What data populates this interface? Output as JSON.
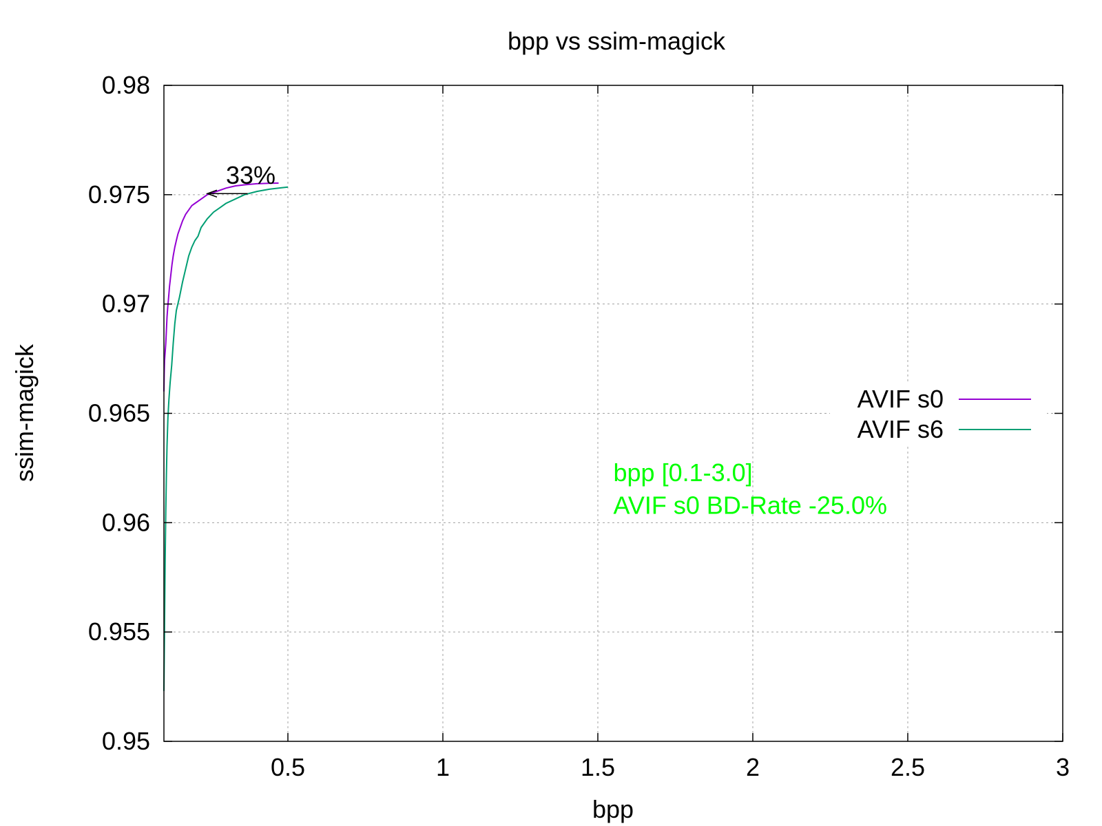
{
  "chart_data": {
    "type": "line",
    "title": "bpp vs ssim-magick",
    "xlabel": "bpp",
    "ylabel": "ssim-magick",
    "xlim": [
      0.1,
      3
    ],
    "ylim": [
      0.95,
      0.98
    ],
    "grid": true,
    "legend_position": "right",
    "x_ticks": [
      {
        "value": 0.5,
        "label": "0.5"
      },
      {
        "value": 1,
        "label": "1"
      },
      {
        "value": 1.5,
        "label": "1.5"
      },
      {
        "value": 2,
        "label": "2"
      },
      {
        "value": 2.5,
        "label": "2.5"
      },
      {
        "value": 3,
        "label": "3"
      }
    ],
    "y_ticks": [
      {
        "value": 0.95,
        "label": "0.95"
      },
      {
        "value": 0.955,
        "label": "0.955"
      },
      {
        "value": 0.96,
        "label": "0.96"
      },
      {
        "value": 0.965,
        "label": "0.965"
      },
      {
        "value": 0.97,
        "label": "0.97"
      },
      {
        "value": 0.975,
        "label": "0.975"
      },
      {
        "value": 0.98,
        "label": "0.98"
      }
    ],
    "series": [
      {
        "name": "AVIF s0",
        "color": "#9400d3",
        "points": [
          [
            0.1,
            0.966
          ],
          [
            0.101,
            0.9668
          ],
          [
            0.102,
            0.9674
          ],
          [
            0.104,
            0.9678
          ],
          [
            0.106,
            0.9682
          ],
          [
            0.108,
            0.9688
          ],
          [
            0.11,
            0.9694
          ],
          [
            0.112,
            0.9698
          ],
          [
            0.115,
            0.9703
          ],
          [
            0.118,
            0.9708
          ],
          [
            0.122,
            0.9713
          ],
          [
            0.126,
            0.9718
          ],
          [
            0.13,
            0.9722
          ],
          [
            0.135,
            0.9726
          ],
          [
            0.14,
            0.9729
          ],
          [
            0.145,
            0.9732
          ],
          [
            0.15,
            0.9734
          ],
          [
            0.16,
            0.9738
          ],
          [
            0.17,
            0.9741
          ],
          [
            0.18,
            0.9743
          ],
          [
            0.19,
            0.9745
          ],
          [
            0.2,
            0.9746
          ],
          [
            0.22,
            0.9748
          ],
          [
            0.24,
            0.975
          ],
          [
            0.26,
            0.9751
          ],
          [
            0.28,
            0.9752
          ],
          [
            0.3,
            0.9753
          ],
          [
            0.33,
            0.9754
          ],
          [
            0.36,
            0.97545
          ],
          [
            0.4,
            0.9755
          ],
          [
            0.44,
            0.97552
          ],
          [
            0.47,
            0.97553
          ]
        ]
      },
      {
        "name": "AVIF s6",
        "color": "#009e73",
        "points": [
          [
            0.1,
            0.9523
          ],
          [
            0.102,
            0.9553
          ],
          [
            0.104,
            0.9583
          ],
          [
            0.106,
            0.9605
          ],
          [
            0.108,
            0.9622
          ],
          [
            0.11,
            0.9635
          ],
          [
            0.113,
            0.9648
          ],
          [
            0.116,
            0.9656
          ],
          [
            0.12,
            0.9664
          ],
          [
            0.125,
            0.9672
          ],
          [
            0.13,
            0.9682
          ],
          [
            0.135,
            0.9691
          ],
          [
            0.14,
            0.9697
          ],
          [
            0.15,
            0.9703
          ],
          [
            0.16,
            0.971
          ],
          [
            0.17,
            0.9716
          ],
          [
            0.18,
            0.9722
          ],
          [
            0.19,
            0.9726
          ],
          [
            0.2,
            0.9729
          ],
          [
            0.21,
            0.9731
          ],
          [
            0.22,
            0.9735
          ],
          [
            0.24,
            0.9739
          ],
          [
            0.26,
            0.9742
          ],
          [
            0.28,
            0.9744
          ],
          [
            0.3,
            0.9746
          ],
          [
            0.33,
            0.9748
          ],
          [
            0.36,
            0.975
          ],
          [
            0.4,
            0.97515
          ],
          [
            0.44,
            0.97525
          ],
          [
            0.48,
            0.97532
          ],
          [
            0.5,
            0.97535
          ]
        ]
      }
    ],
    "annotations": [
      {
        "text": "33%",
        "x": 0.3,
        "y": 0.9755,
        "color": "#000000"
      },
      {
        "text": "bpp [0.1-3.0]",
        "x": 1.55,
        "y": 0.9619,
        "color": "#00ff00"
      },
      {
        "text": "AVIF s0 BD-Rate -25.0%",
        "x": 1.55,
        "y": 0.9604,
        "color": "#00ff00"
      }
    ],
    "arrow": {
      "from": [
        0.37,
        0.97505
      ],
      "to": [
        0.24,
        0.97505
      ],
      "color": "#000000"
    }
  }
}
